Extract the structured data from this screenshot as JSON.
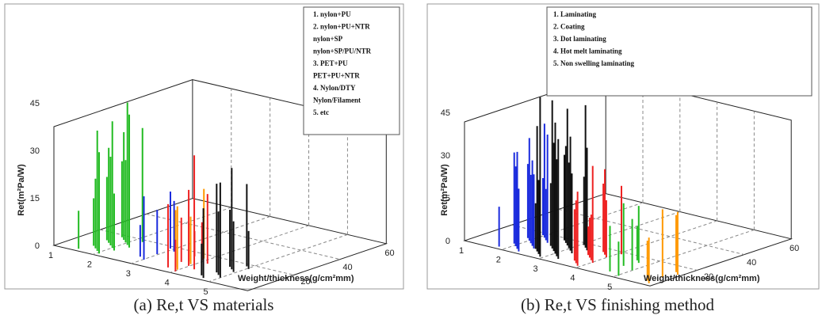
{
  "chart_data": [
    {
      "type": "bar",
      "panel": "a",
      "caption": "(a) Re,t VS materials",
      "ylabel": "Ret(m²Pa/W)",
      "xlabel": "Weight/thickness(g/cm²mm)",
      "y_ticks": [
        "0",
        "15",
        "30",
        "45"
      ],
      "x_ticks": [
        "1",
        "2",
        "3",
        "4",
        "5"
      ],
      "depth_ticks": [
        "20",
        "40",
        "60"
      ],
      "ylim": [
        0,
        60
      ],
      "legend": [
        "1.  nylon+PU",
        "2.  nylon+PU+NTR",
        "     nylon+SP",
        "     nylon+SP/PU/NTR",
        "3.  PET+PU",
        "     PET+PU+NTR",
        "4.  Nylon/DTY",
        "     Nylon/Filament",
        "5.  etc"
      ],
      "series": [
        {
          "color": "#22bb22",
          "points": [
            [
              1.55,
              12
            ],
            [
              1.6,
              20
            ],
            [
              1.65,
              15
            ],
            [
              1.7,
              24
            ],
            [
              1.75,
              30
            ],
            [
              1.8,
              22
            ],
            [
              1.85,
              34
            ],
            [
              1.9,
              28
            ],
            [
              1.95,
              38
            ],
            [
              2.0,
              26
            ],
            [
              2.05,
              40
            ],
            [
              2.1,
              32
            ],
            [
              2.15,
              45
            ],
            [
              2.2,
              18
            ],
            [
              2.25,
              36
            ],
            [
              2.3,
              42
            ]
          ]
        },
        {
          "color": "#1a2bdd",
          "points": [
            [
              2.9,
              10
            ],
            [
              3.0,
              18
            ],
            [
              3.05,
              14
            ],
            [
              3.1,
              20
            ],
            [
              3.2,
              16
            ]
          ]
        },
        {
          "color": "#ff9900",
          "points": [
            [
              3.9,
              12
            ],
            [
              3.95,
              18
            ],
            [
              4.0,
              22
            ],
            [
              4.05,
              15
            ],
            [
              4.1,
              20
            ]
          ]
        },
        {
          "color": "#ee2222",
          "points": [
            [
              3.75,
              8
            ],
            [
              3.8,
              14
            ],
            [
              3.85,
              20
            ],
            [
              4.05,
              12
            ],
            [
              4.1,
              24
            ],
            [
              4.15,
              10
            ],
            [
              4.3,
              22
            ],
            [
              4.35,
              36
            ]
          ]
        },
        {
          "color": "#111111",
          "points": [
            [
              4.75,
              10
            ],
            [
              4.8,
              18
            ],
            [
              4.85,
              28
            ],
            [
              4.9,
              22
            ],
            [
              4.95,
              32
            ],
            [
              5.0,
              20
            ],
            [
              5.05,
              26
            ],
            [
              5.1,
              16
            ],
            [
              5.15,
              30
            ],
            [
              5.2,
              12
            ]
          ]
        }
      ]
    },
    {
      "type": "bar",
      "panel": "b",
      "caption": "(b) Re,t VS finishing method",
      "ylabel": "Ret(m²Pa/W)",
      "xlabel": "Weight/thickness(g/cm²mm)",
      "y_ticks": [
        "0",
        "15",
        "30",
        "45"
      ],
      "x_ticks": [
        "1",
        "2",
        "3",
        "4",
        "5"
      ],
      "depth_ticks": [
        "20",
        "40",
        "60"
      ],
      "ylim": [
        0,
        60
      ],
      "legend": [
        "1.  Laminating",
        "2.  Coating",
        "3.  Dot laminating",
        "4.  Hot melt laminating",
        "5.  Non swelling laminating"
      ],
      "series": [
        {
          "color": "#1a2bdd",
          "points": [
            [
              1.85,
              14
            ],
            [
              1.9,
              26
            ],
            [
              1.95,
              32
            ],
            [
              2.0,
              20
            ],
            [
              2.05,
              36
            ],
            [
              2.1,
              28
            ],
            [
              2.15,
              40
            ],
            [
              2.2,
              24
            ],
            [
              2.25,
              34
            ],
            [
              2.3,
              18
            ],
            [
              2.35,
              30
            ],
            [
              2.4,
              22
            ],
            [
              2.45,
              38
            ],
            [
              2.5,
              26
            ]
          ]
        },
        {
          "color": "#111111",
          "points": [
            [
              2.55,
              16
            ],
            [
              2.6,
              30
            ],
            [
              2.65,
              22
            ],
            [
              2.7,
              44
            ],
            [
              2.75,
              34
            ],
            [
              2.8,
              52
            ],
            [
              2.85,
              26
            ],
            [
              2.9,
              48
            ],
            [
              2.95,
              38
            ],
            [
              3.0,
              56
            ],
            [
              3.05,
              30
            ],
            [
              3.1,
              46
            ],
            [
              3.15,
              24
            ],
            [
              3.2,
              40
            ],
            [
              3.25,
              34
            ],
            [
              3.3,
              50
            ],
            [
              3.35,
              28
            ],
            [
              3.4,
              42
            ],
            [
              3.45,
              36
            ]
          ]
        },
        {
          "color": "#ee2222",
          "points": [
            [
              3.7,
              10
            ],
            [
              3.75,
              18
            ],
            [
              3.8,
              24
            ],
            [
              3.85,
              14
            ],
            [
              3.9,
              22
            ],
            [
              3.95,
              30
            ],
            [
              4.0,
              16
            ],
            [
              4.05,
              26
            ],
            [
              4.1,
              20
            ],
            [
              4.15,
              34
            ],
            [
              4.2,
              24
            ]
          ]
        },
        {
          "color": "#22bb22",
          "points": [
            [
              4.75,
              12
            ],
            [
              4.8,
              22
            ],
            [
              4.85,
              16
            ],
            [
              4.9,
              20
            ],
            [
              5.15,
              18
            ],
            [
              5.2,
              12
            ]
          ]
        },
        {
          "color": "#ff9900",
          "points": [
            [
              5.9,
              14
            ],
            [
              5.95,
              20
            ],
            [
              6.0,
              24
            ],
            [
              6.05,
              16
            ],
            [
              6.1,
              22
            ]
          ]
        }
      ]
    }
  ]
}
